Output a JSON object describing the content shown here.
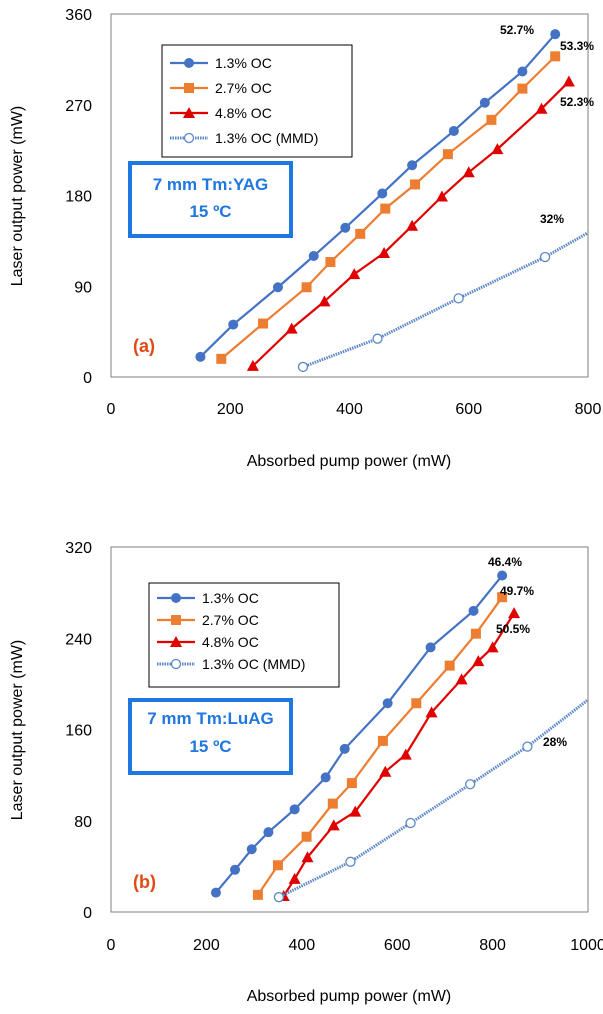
{
  "colors": {
    "oc13": "#4472C4",
    "oc27": "#ED7D31",
    "oc48": "#E00000",
    "mmd": "#5B87C8",
    "info_box": "#1F77E0",
    "panel_label": "#E04B14"
  },
  "chart_data": [
    {
      "type": "line",
      "panel_label": "(a)",
      "info_box": {
        "line1": "7 mm Tm:YAG",
        "line2": "15 ºC"
      },
      "xlabel": "Absorbed pump power (mW)",
      "ylabel": "Laser output power (mW)",
      "xlim": [
        0,
        800
      ],
      "ylim": [
        0,
        360
      ],
      "xticks": [
        0,
        200,
        400,
        600,
        800
      ],
      "yticks": [
        0,
        90,
        180,
        270,
        360
      ],
      "legend_position": "top-left",
      "series": [
        {
          "name": "1.3% OC",
          "color_key": "oc13",
          "marker": "circle",
          "x": [
            150,
            205,
            280,
            340,
            393,
            455,
            505,
            575,
            627,
            690,
            745
          ],
          "y": [
            20,
            52,
            89,
            120,
            148,
            182,
            210,
            244,
            272,
            303,
            340
          ],
          "slope_label": "52.7%"
        },
        {
          "name": "2.7% OC",
          "color_key": "oc27",
          "marker": "square",
          "x": [
            185,
            255,
            328,
            368,
            418,
            460,
            510,
            565,
            638,
            690,
            745
          ],
          "y": [
            18,
            53,
            89,
            114,
            142,
            167,
            191,
            221,
            255,
            286,
            318
          ],
          "slope_label": "53.3%"
        },
        {
          "name": "4.8% OC",
          "color_key": "oc48",
          "marker": "triangle",
          "x": [
            238,
            303,
            358,
            408,
            458,
            505,
            555,
            600,
            648,
            722,
            768
          ],
          "y": [
            11,
            48,
            75,
            102,
            123,
            150,
            179,
            203,
            226,
            266,
            293
          ],
          "slope_label": "52.3%"
        },
        {
          "name": "1.3% OC (MMD)",
          "color_key": "mmd",
          "marker": "open-circle",
          "x": [
            322,
            447,
            583,
            728,
            800
          ],
          "y": [
            10,
            38,
            78,
            119,
            143
          ],
          "slope_label": "32%"
        }
      ]
    },
    {
      "type": "line",
      "panel_label": "(b)",
      "info_box": {
        "line1": "7 mm Tm:LuAG",
        "line2": "15 ºC"
      },
      "xlabel": "Absorbed pump power (mW)",
      "ylabel": "Laser output power (mW)",
      "xlim": [
        0,
        1000
      ],
      "ylim": [
        0,
        320
      ],
      "xticks": [
        0,
        200,
        400,
        600,
        800,
        1000
      ],
      "yticks": [
        0,
        80,
        160,
        240,
        320
      ],
      "legend_position": "top-left",
      "series": [
        {
          "name": "1.3% OC",
          "color_key": "oc13",
          "marker": "circle",
          "x": [
            220,
            260,
            295,
            330,
            385,
            450,
            490,
            580,
            670,
            760,
            820
          ],
          "y": [
            17,
            37,
            55,
            70,
            90,
            118,
            143,
            183,
            232,
            264,
            295
          ],
          "slope_label": "46.4%"
        },
        {
          "name": "2.7% OC",
          "color_key": "oc27",
          "marker": "square",
          "x": [
            308,
            350,
            410,
            465,
            505,
            570,
            640,
            710,
            765,
            820
          ],
          "y": [
            15,
            41,
            66,
            95,
            113,
            150,
            183,
            216,
            244,
            276
          ],
          "slope_label": "49.7%"
        },
        {
          "name": "4.8% OC",
          "color_key": "oc48",
          "marker": "triangle",
          "x": [
            362,
            385,
            412,
            467,
            512,
            575,
            618,
            672,
            735,
            770,
            800,
            845
          ],
          "y": [
            14,
            29,
            48,
            76,
            88,
            123,
            138,
            175,
            204,
            220,
            232,
            262
          ],
          "slope_label": "50.5%"
        },
        {
          "name": "1.3% OC (MMD)",
          "color_key": "mmd",
          "marker": "open-circle",
          "x": [
            352,
            502,
            628,
            753,
            873,
            1000
          ],
          "y": [
            13,
            44,
            78,
            112,
            145,
            186
          ],
          "slope_label": "28%"
        }
      ]
    }
  ]
}
